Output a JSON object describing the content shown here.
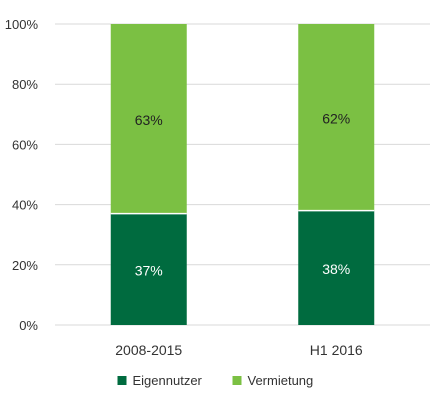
{
  "chart_data": {
    "type": "bar",
    "stacked": true,
    "percent": true,
    "categories": [
      "2008-2015",
      "H1 2016"
    ],
    "series": [
      {
        "name": "Eigennutzer",
        "values": [
          37,
          38
        ],
        "labels": [
          "37%",
          "38%"
        ],
        "color": "#006b3f",
        "label_color": "#ffffff"
      },
      {
        "name": "Vermietung",
        "values": [
          63,
          62
        ],
        "labels": [
          "63%",
          "62%"
        ],
        "color": "#7bc043",
        "label_color": "#222222"
      }
    ],
    "ylim": [
      0,
      100
    ],
    "yticks": [
      0,
      20,
      40,
      60,
      80,
      100
    ],
    "ytick_labels": [
      "0%",
      "20%",
      "40%",
      "60%",
      "80%",
      "100%"
    ],
    "grid": true,
    "gridline_color": "#d9d9d9",
    "legend_position": "bottom-center",
    "title": "",
    "xlabel": "",
    "ylabel": ""
  }
}
